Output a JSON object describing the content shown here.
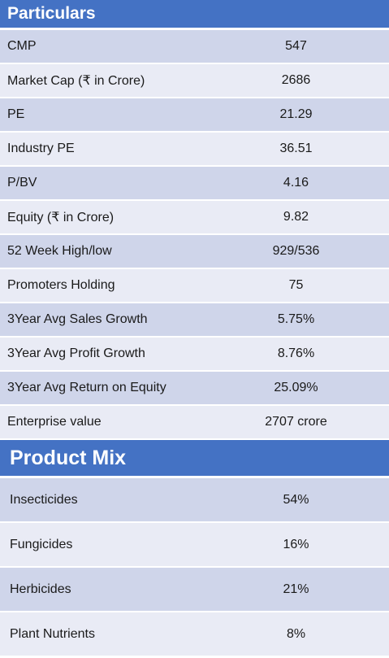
{
  "particulars": {
    "title": "Particulars",
    "rows": [
      {
        "label": "CMP",
        "value": "547"
      },
      {
        "label": "Market Cap (₹ in Crore)",
        "value": "2686"
      },
      {
        "label": "PE",
        "value": "21.29"
      },
      {
        "label": "Industry PE",
        "value": "36.51"
      },
      {
        "label": "P/BV",
        "value": "4.16"
      },
      {
        "label": "Equity (₹ in Crore)",
        "value": "9.82"
      },
      {
        "label": "52 Week High/low",
        "value": "929/536"
      },
      {
        "label": "Promoters Holding",
        "value": "75"
      },
      {
        "label": "3Year Avg Sales Growth",
        "value": "5.75%"
      },
      {
        "label": "3Year Avg Profit Growth",
        "value": "8.76%"
      },
      {
        "label": "3Year Avg Return on Equity",
        "value": "25.09%"
      },
      {
        "label": "Enterprise value",
        "value": "2707 crore"
      }
    ]
  },
  "product_mix": {
    "title": "Product Mix",
    "rows": [
      {
        "label": "Insecticides",
        "value": "54%"
      },
      {
        "label": "Fungicides",
        "value": "16%"
      },
      {
        "label": "Herbicides",
        "value": "21%"
      },
      {
        "label": "Plant Nutrients",
        "value": "8%"
      }
    ]
  },
  "colors": {
    "header": "#4472c4",
    "row_dark": "#cfd5ea",
    "row_light": "#e9ebf5"
  }
}
